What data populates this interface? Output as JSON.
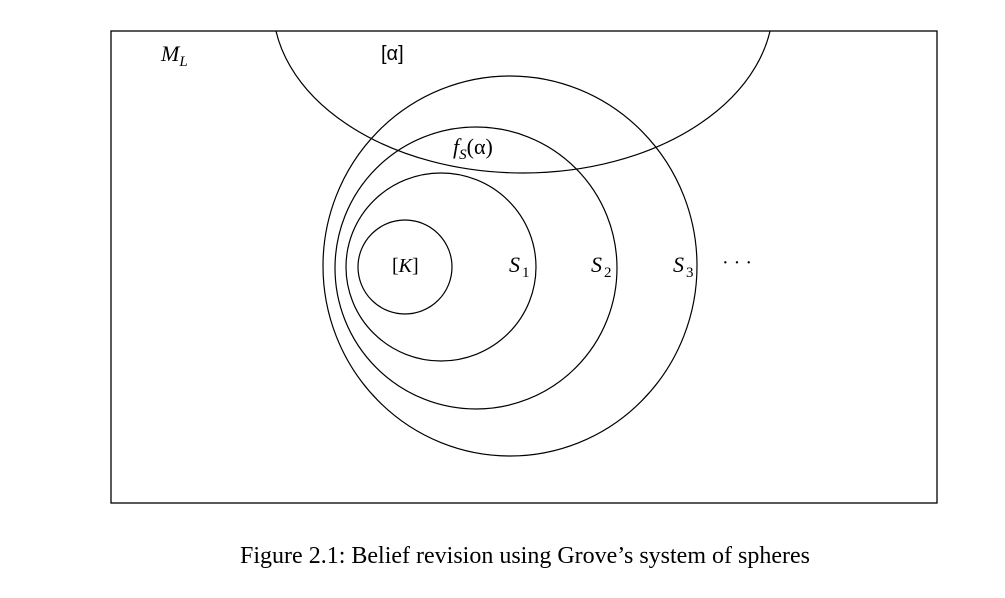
{
  "colors": {
    "stroke": "#000000",
    "background": "#ffffff"
  },
  "diagram": {
    "model_set_label": {
      "main": "M",
      "sub": "L"
    },
    "alpha_label": "[α]",
    "selection_label": {
      "f": "f",
      "sub": "S",
      "arg": "(α)"
    },
    "core_label": {
      "open": "[",
      "k": "K",
      "close": "]"
    },
    "spheres": [
      {
        "main": "S",
        "sub": "1"
      },
      {
        "main": "S",
        "sub": "2"
      },
      {
        "main": "S",
        "sub": "3"
      }
    ],
    "ellipsis": "· · ·"
  },
  "caption": "Figure 2.1: Belief revision using Grove’s system of spheres"
}
